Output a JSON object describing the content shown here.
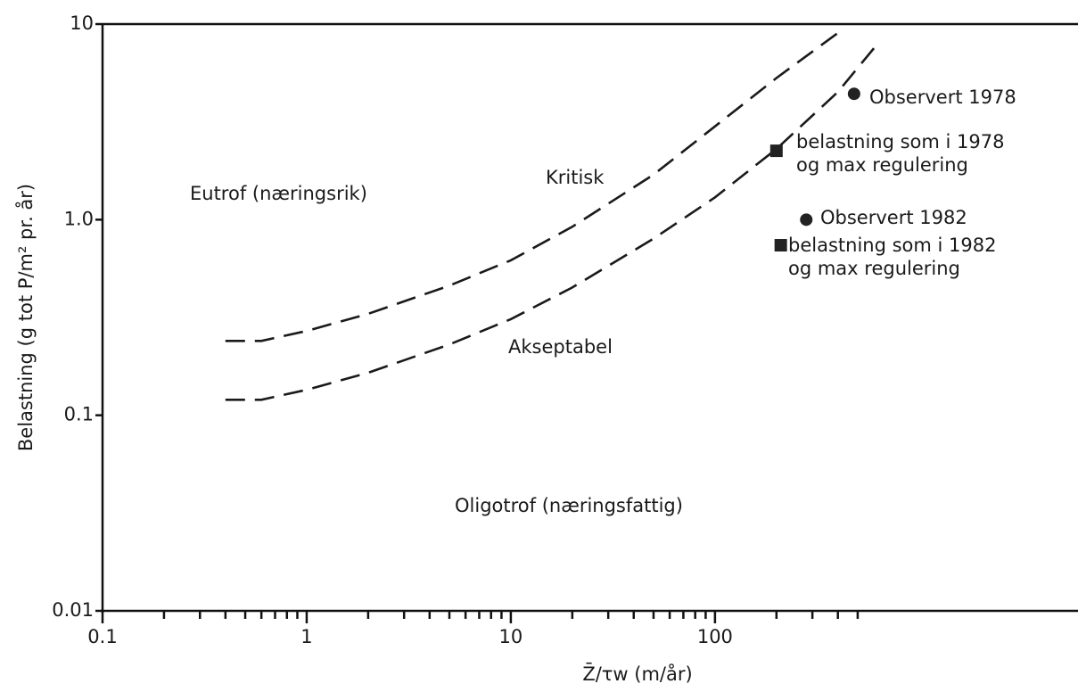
{
  "chart_data": {
    "type": "line",
    "ylabel": "Belastning (g tot P/m² pr. år)",
    "xlabel": "Z̄/τw (m/år)",
    "xscale": "log",
    "yscale": "log",
    "xlim": [
      0.1,
      6000
    ],
    "ylim": [
      0.01,
      10
    ],
    "xticks": [
      0.1,
      1,
      10,
      100
    ],
    "xminorticks": [
      0.2,
      0.3,
      0.4,
      0.5,
      0.6,
      0.7,
      0.8,
      0.9,
      2,
      3,
      4,
      5,
      6,
      7,
      8,
      9,
      20,
      30,
      40,
      50,
      60,
      70,
      80,
      90,
      200,
      300,
      400,
      500
    ],
    "yticks": [
      {
        "value": 0.01,
        "label": "0.01"
      },
      0.1,
      {
        "value": 1,
        "label": "1.0"
      },
      10
    ],
    "annotations": [
      "Eutrof (næringsrik)",
      "Oligotrof (næringsfattig)"
    ],
    "series": [
      {
        "name": "Kritisk",
        "type": "line",
        "dashed": true,
        "color": "#1a1a1a",
        "x": [
          0.4,
          0.6,
          1,
          2,
          5,
          10,
          20,
          50,
          100,
          200,
          400
        ],
        "values": [
          0.24,
          0.24,
          0.27,
          0.33,
          0.46,
          0.62,
          0.92,
          1.7,
          3.0,
          5.3,
          9.0
        ]
      },
      {
        "name": "Akseptabel",
        "type": "line",
        "dashed": true,
        "color": "#1a1a1a",
        "x": [
          0.4,
          0.6,
          1,
          2,
          5,
          10,
          20,
          50,
          100,
          200,
          400,
          630
        ],
        "values": [
          0.12,
          0.12,
          0.135,
          0.165,
          0.23,
          0.31,
          0.45,
          0.8,
          1.3,
          2.3,
          4.5,
          8.0
        ]
      },
      {
        "name": "Observert  1978",
        "type": "scatter",
        "marker": "circle",
        "color": "#222",
        "x": [
          480
        ],
        "values": [
          4.4
        ]
      },
      {
        "label": [
          "belastning som i 1978",
          "og max regulering"
        ],
        "type": "scatter",
        "marker": "square",
        "color": "#222",
        "x": [
          200
        ],
        "values": [
          2.25
        ]
      },
      {
        "name": "Observert 1982",
        "type": "scatter",
        "marker": "circle",
        "color": "#222",
        "x": [
          280
        ],
        "values": [
          1.0
        ]
      },
      {
        "label": [
          "belastning som i 1982",
          "og max regulering"
        ],
        "type": "scatter",
        "marker": "square",
        "color": "#222",
        "x": [
          210
        ],
        "values": [
          0.74
        ]
      }
    ]
  }
}
